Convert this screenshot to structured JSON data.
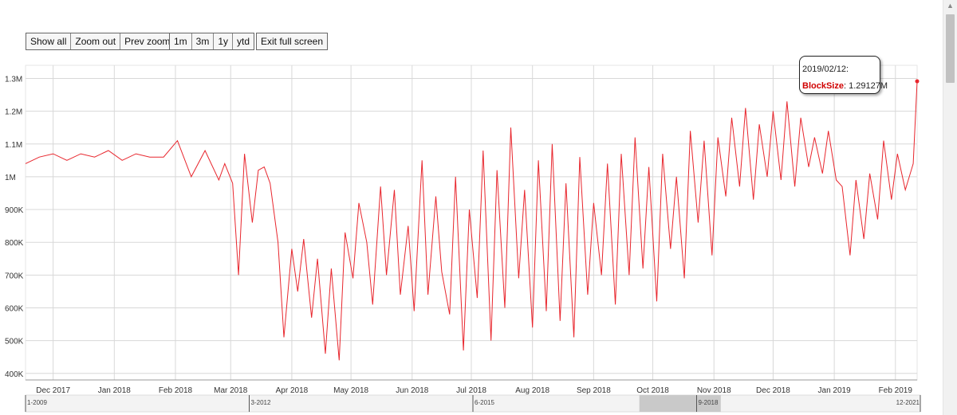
{
  "toolbar": {
    "zoom": [
      "Show all",
      "Zoom out",
      "Prev zoom"
    ],
    "ranges": [
      "1m",
      "3m",
      "1y",
      "ytd"
    ],
    "fullscreen": "Exit full screen"
  },
  "tooltip": {
    "date": "2019/02/12:",
    "series": "BlockSize",
    "value": "1.29127M"
  },
  "colors": {
    "line": "#e8262d",
    "grid": "#d8d8d8",
    "navigator_band": "#c9c9c9",
    "tooltip_series": "#d00000"
  },
  "chart_data": {
    "type": "line",
    "title": "",
    "xlabel": "",
    "ylabel": "",
    "x_range": [
      "2017-11-17",
      "2019-02-12"
    ],
    "ylim": [
      380000,
      1340000
    ],
    "y_ticks": [
      400000,
      500000,
      600000,
      700000,
      800000,
      900000,
      1000000,
      1100000,
      1200000,
      1300000
    ],
    "y_tick_labels": [
      "400K",
      "500K",
      "600K",
      "700K",
      "800K",
      "900K",
      "1M",
      "1.1M",
      "1.2M",
      "1.3M"
    ],
    "x_ticks": [
      "2017-12-01",
      "2018-01-01",
      "2018-02-01",
      "2018-03-01",
      "2018-04-01",
      "2018-05-01",
      "2018-06-01",
      "2018-07-01",
      "2018-08-01",
      "2018-09-01",
      "2018-10-01",
      "2018-11-01",
      "2018-12-01",
      "2019-01-01",
      "2019-02-01"
    ],
    "x_tick_labels": [
      "Dec 2017",
      "Jan 2018",
      "Feb 2018",
      "Mar 2018",
      "Apr 2018",
      "May 2018",
      "Jun 2018",
      "Jul 2018",
      "Aug 2018",
      "Sep 2018",
      "Oct 2018",
      "Nov 2018",
      "Dec 2018",
      "Jan 2019",
      "Feb 2019"
    ],
    "grid": true,
    "legend": "none",
    "series": [
      {
        "name": "BlockSize",
        "x": [
          "2017-11-17",
          "2017-11-24",
          "2017-12-01",
          "2017-12-08",
          "2017-12-15",
          "2017-12-22",
          "2017-12-29",
          "2018-01-05",
          "2018-01-12",
          "2018-01-19",
          "2018-01-26",
          "2018-02-02",
          "2018-02-09",
          "2018-02-16",
          "2018-02-23",
          "2018-02-26",
          "2018-03-02",
          "2018-03-05",
          "2018-03-08",
          "2018-03-12",
          "2018-03-15",
          "2018-03-18",
          "2018-03-21",
          "2018-03-25",
          "2018-03-28",
          "2018-04-01",
          "2018-04-04",
          "2018-04-07",
          "2018-04-11",
          "2018-04-14",
          "2018-04-18",
          "2018-04-21",
          "2018-04-25",
          "2018-04-28",
          "2018-05-02",
          "2018-05-05",
          "2018-05-09",
          "2018-05-12",
          "2018-05-16",
          "2018-05-19",
          "2018-05-23",
          "2018-05-26",
          "2018-05-30",
          "2018-06-02",
          "2018-06-06",
          "2018-06-09",
          "2018-06-13",
          "2018-06-16",
          "2018-06-20",
          "2018-06-23",
          "2018-06-27",
          "2018-06-30",
          "2018-07-04",
          "2018-07-07",
          "2018-07-11",
          "2018-07-14",
          "2018-07-18",
          "2018-07-21",
          "2018-07-25",
          "2018-07-28",
          "2018-08-01",
          "2018-08-04",
          "2018-08-08",
          "2018-08-11",
          "2018-08-15",
          "2018-08-18",
          "2018-08-22",
          "2018-08-25",
          "2018-08-29",
          "2018-09-01",
          "2018-09-05",
          "2018-09-08",
          "2018-09-12",
          "2018-09-15",
          "2018-09-19",
          "2018-09-22",
          "2018-09-26",
          "2018-09-29",
          "2018-10-03",
          "2018-10-06",
          "2018-10-10",
          "2018-10-13",
          "2018-10-17",
          "2018-10-20",
          "2018-10-24",
          "2018-10-27",
          "2018-10-31",
          "2018-11-03",
          "2018-11-07",
          "2018-11-10",
          "2018-11-14",
          "2018-11-17",
          "2018-11-21",
          "2018-11-24",
          "2018-11-28",
          "2018-12-01",
          "2018-12-05",
          "2018-12-08",
          "2018-12-12",
          "2018-12-15",
          "2018-12-19",
          "2018-12-22",
          "2018-12-26",
          "2018-12-29",
          "2019-01-02",
          "2019-01-05",
          "2019-01-09",
          "2019-01-12",
          "2019-01-16",
          "2019-01-19",
          "2019-01-23",
          "2019-01-26",
          "2019-01-30",
          "2019-02-02",
          "2019-02-06",
          "2019-02-10",
          "2019-02-12"
        ],
        "values": [
          1040000,
          1060000,
          1070000,
          1050000,
          1070000,
          1060000,
          1080000,
          1050000,
          1070000,
          1060000,
          1060000,
          1110000,
          1000000,
          1080000,
          990000,
          1040000,
          980000,
          700000,
          1070000,
          860000,
          1020000,
          1030000,
          980000,
          800000,
          510000,
          780000,
          650000,
          810000,
          570000,
          750000,
          460000,
          720000,
          440000,
          830000,
          690000,
          920000,
          800000,
          610000,
          970000,
          700000,
          960000,
          640000,
          850000,
          590000,
          1050000,
          640000,
          940000,
          710000,
          580000,
          1000000,
          470000,
          900000,
          630000,
          1080000,
          500000,
          1020000,
          600000,
          1150000,
          690000,
          960000,
          540000,
          1050000,
          590000,
          1100000,
          560000,
          980000,
          510000,
          1060000,
          640000,
          920000,
          700000,
          1040000,
          610000,
          1070000,
          700000,
          1120000,
          720000,
          1030000,
          620000,
          1070000,
          780000,
          1000000,
          690000,
          1140000,
          860000,
          1110000,
          760000,
          1120000,
          940000,
          1180000,
          970000,
          1210000,
          930000,
          1160000,
          1000000,
          1200000,
          990000,
          1230000,
          970000,
          1180000,
          1030000,
          1120000,
          1010000,
          1140000,
          990000,
          970000,
          760000,
          990000,
          810000,
          1010000,
          870000,
          1110000,
          930000,
          1070000,
          960000,
          1040000,
          1291270
        ]
      }
    ]
  },
  "navigator": {
    "tick_labels": [
      "1-2009",
      "3-2012",
      "6-2015",
      "9-2018",
      "12-2021"
    ]
  }
}
